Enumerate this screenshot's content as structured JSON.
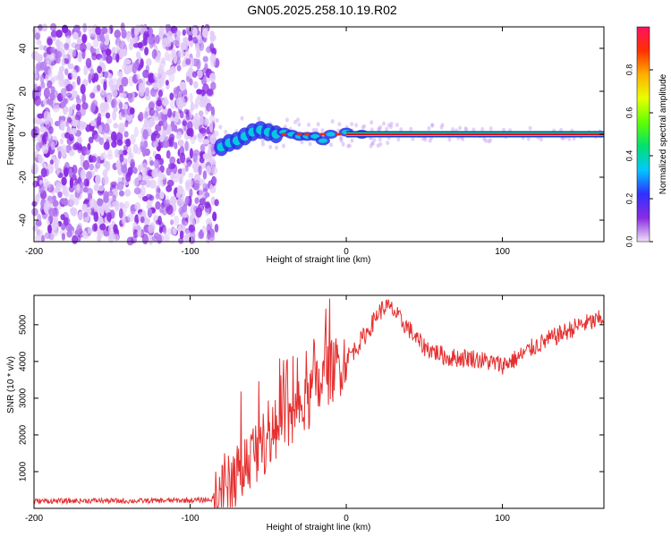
{
  "figure": {
    "title": "GN05.2025.258.10.19.R02"
  },
  "colors": {
    "background": "#ffffff",
    "axis": "#000000",
    "snr_line": "#e53030",
    "spectrogram_noise": "#7b2ff7",
    "spectrogram_ridge": "#d01818"
  },
  "chart_data": [
    {
      "type": "heatmap",
      "title": "GN05.2025.258.10.19.R02",
      "xlabel": "Height of straight line (km)",
      "ylabel": "Frequency (Hz)",
      "xlim": [
        -200,
        165
      ],
      "ylim": [
        -50,
        50
      ],
      "x_ticks": [
        -200,
        -100,
        0,
        100
      ],
      "y_ticks": [
        -40,
        -20,
        0,
        20,
        40
      ],
      "grid": false,
      "colorbar": {
        "label": "Normalized spectral amplitude",
        "range": [
          0,
          1
        ],
        "ticks": [
          0.0,
          0.2,
          0.4,
          0.6,
          0.8
        ],
        "colormap": [
          "#f0e0f8",
          "#8a2be2",
          "#3030ff",
          "#00c8ff",
          "#00e070",
          "#60ff00",
          "#e8ff00",
          "#ffb000",
          "#ff3000",
          "#ff1060"
        ]
      },
      "features": {
        "noise_region_x": [
          -200,
          -83
        ],
        "noise_amplitude": 0.15,
        "onset_x": -83,
        "ridge_frequency_hz": 0,
        "ridge_points": [
          {
            "x": -80,
            "y": -6
          },
          {
            "x": -75,
            "y": -4
          },
          {
            "x": -70,
            "y": -3
          },
          {
            "x": -65,
            "y": -1
          },
          {
            "x": -60,
            "y": 1
          },
          {
            "x": -55,
            "y": 2
          },
          {
            "x": -50,
            "y": 1
          },
          {
            "x": -45,
            "y": 0
          },
          {
            "x": -40,
            "y": 1
          },
          {
            "x": -35,
            "y": 0
          },
          {
            "x": -30,
            "y": -1
          },
          {
            "x": -25,
            "y": -1
          },
          {
            "x": -20,
            "y": -1
          },
          {
            "x": -15,
            "y": -3
          },
          {
            "x": -10,
            "y": 0
          },
          {
            "x": 0,
            "y": 1
          },
          {
            "x": 10,
            "y": 0
          },
          {
            "x": 165,
            "y": 0
          }
        ],
        "ridge_amplitude_after": 0.95
      }
    },
    {
      "type": "line",
      "xlabel": "Height of straight line (km)",
      "ylabel": "SNR (10 * v/v)",
      "xlim": [
        -200,
        165
      ],
      "ylim": [
        0,
        5800
      ],
      "x_ticks": [
        -200,
        -100,
        0,
        100
      ],
      "y_ticks": [
        1000,
        2000,
        3000,
        4000,
        5000
      ],
      "grid": false,
      "series": [
        {
          "x": [
            -200,
            -180,
            -160,
            -140,
            -120,
            -100,
            -90,
            -85,
            -80,
            -75,
            -70,
            -65,
            -60,
            -55,
            -50,
            -45,
            -40,
            -35,
            -30,
            -25,
            -20,
            -15,
            -10,
            -5,
            0,
            5,
            10,
            15,
            20,
            25,
            30,
            35,
            40,
            45,
            50,
            55,
            60,
            65,
            70,
            80,
            90,
            100,
            110,
            120,
            130,
            140,
            150,
            160,
            165
          ],
          "y": [
            200,
            200,
            210,
            200,
            210,
            220,
            230,
            250,
            350,
            600,
            900,
            1200,
            1500,
            1700,
            1900,
            2100,
            2300,
            2400,
            2600,
            2800,
            3200,
            3400,
            3700,
            3900,
            4100,
            4300,
            4600,
            4900,
            5300,
            5500,
            5400,
            5100,
            4900,
            4600,
            4400,
            4300,
            4200,
            4100,
            4100,
            4100,
            4000,
            3900,
            4100,
            4400,
            4600,
            4800,
            5000,
            5100,
            5200
          ]
        }
      ]
    }
  ]
}
